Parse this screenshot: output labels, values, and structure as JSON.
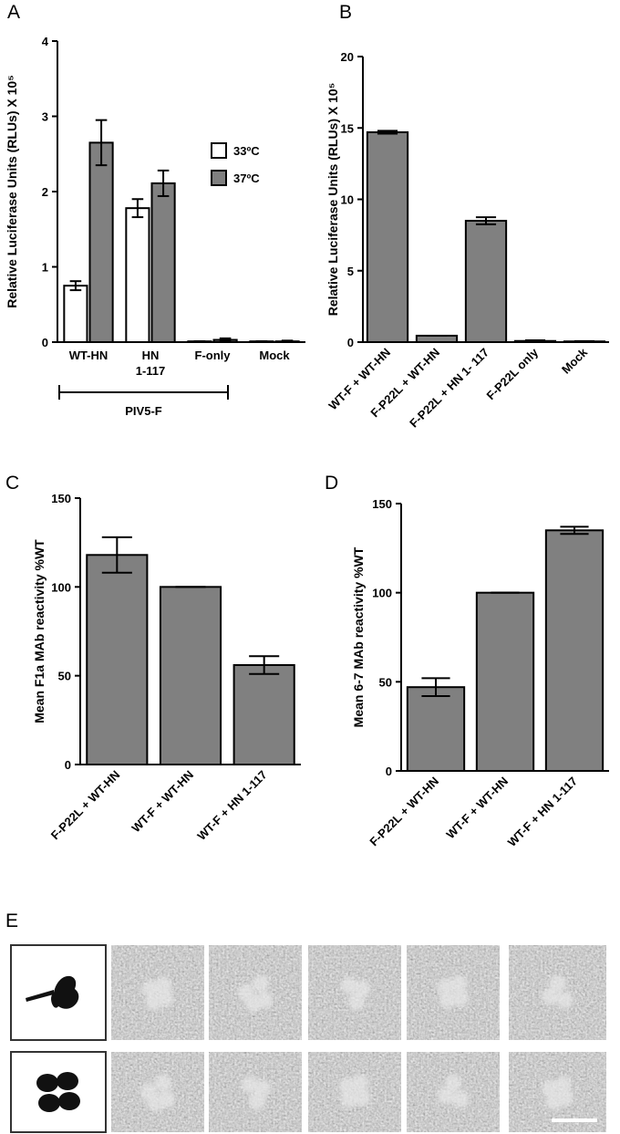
{
  "chart_data": [
    {
      "label": "A",
      "type": "bar",
      "y_label": "Relative Luciferase Units (RLUs) X 10⁵",
      "categories": [
        "WT-HN",
        "HN\n1-117",
        "F-only",
        "Mock"
      ],
      "series": [
        {
          "name": "33ºC",
          "color": "#ffffff",
          "values": [
            0.75,
            1.78,
            0.01,
            0.01
          ],
          "errors": [
            0.06,
            0.12,
            0.0,
            0.0
          ]
        },
        {
          "name": "37ºC",
          "color": "#808080",
          "values": [
            2.65,
            2.11,
            0.03,
            0.01
          ],
          "errors": [
            0.3,
            0.17,
            0.02,
            0.01
          ]
        }
      ],
      "ylim": [
        0,
        4
      ],
      "yticks": [
        0,
        1,
        2,
        3,
        4
      ],
      "annotation": "PIV5-F"
    },
    {
      "label": "B",
      "type": "bar",
      "y_label": "Relative Luciferase Units (RLUs) X 10⁵",
      "categories": [
        "WT-F + WT-HN",
        "F-P22L + WT-HN",
        "F-P22L + HN 1- 117",
        "F-P22L only",
        "Mock"
      ],
      "values": [
        14.7,
        0.45,
        8.5,
        0.08,
        0.05
      ],
      "errors": [
        0.1,
        0.0,
        0.25,
        0.05,
        0.02
      ],
      "color": "#808080",
      "ylim": [
        0,
        20
      ],
      "yticks": [
        0,
        5,
        10,
        15,
        20
      ]
    },
    {
      "label": "C",
      "type": "bar",
      "y_label": "Mean F1a MAb reactivity %WT",
      "categories": [
        "F-P22L + WT-HN",
        "WT-F + WT-HN",
        "WT-F + HN 1-117"
      ],
      "values": [
        118,
        100,
        56
      ],
      "errors": [
        10,
        0,
        5
      ],
      "color": "#808080",
      "ylim": [
        0,
        150
      ],
      "yticks": [
        0,
        50,
        100,
        150
      ]
    },
    {
      "label": "D",
      "type": "bar",
      "y_label": "Mean 6-7 MAb reactivity %WT",
      "categories": [
        "F-P22L + WT-HN",
        "WT-F + WT-HN",
        "WT-F + HN 1-117"
      ],
      "values": [
        47,
        100,
        135
      ],
      "errors": [
        5,
        0,
        2
      ],
      "color": "#808080",
      "ylim": [
        0,
        150
      ],
      "yticks": [
        0,
        50,
        100,
        150
      ]
    }
  ],
  "figure_e": {
    "label": "E"
  }
}
